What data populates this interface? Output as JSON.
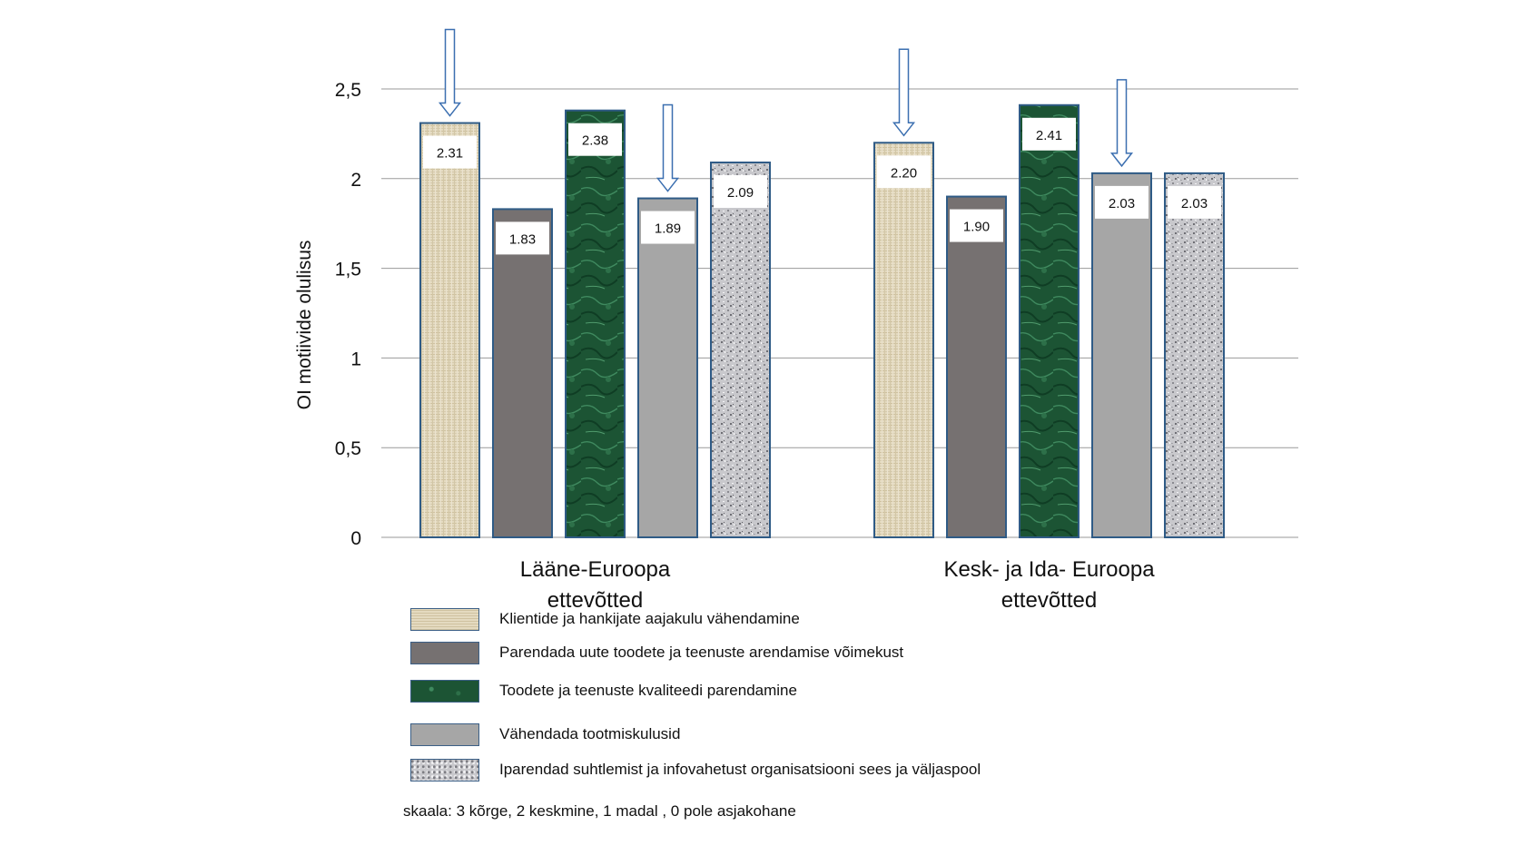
{
  "chart_data": {
    "type": "bar",
    "ylabel": "OI motiivide olulisus",
    "ylim": [
      0,
      2.5
    ],
    "yticks": [
      {
        "value": 0,
        "label": "0"
      },
      {
        "value": 0.5,
        "label": "0,5"
      },
      {
        "value": 1,
        "label": "1"
      },
      {
        "value": 1.5,
        "label": "1,5"
      },
      {
        "value": 2,
        "label": "2"
      },
      {
        "value": 2.5,
        "label": "2,5"
      }
    ],
    "grid": true,
    "groups": [
      {
        "label_lines": [
          "Lääne-Euroopa",
          "ettevõtted"
        ],
        "highlighted_series": [
          0,
          3
        ]
      },
      {
        "label_lines": [
          "Kesk- ja Ida- Euroopa",
          "ettevõtted"
        ],
        "highlighted_series": [
          0,
          3
        ]
      }
    ],
    "series": [
      {
        "name": "Klientide ja hankijate aajakulu vähendamine",
        "pattern": "linen",
        "color": "#ddd2b5",
        "values": [
          2.31,
          2.2
        ],
        "labels": [
          "2.31",
          "2.20"
        ]
      },
      {
        "name": "Parendada uute toodete ja teenuste arendamise võimekust",
        "pattern": "solid",
        "color": "#767171",
        "values": [
          1.83,
          1.9
        ],
        "labels": [
          "1.83",
          "1.90"
        ]
      },
      {
        "name": "Toodete ja teenuste kvaliteedi parendamine",
        "pattern": "marble",
        "color": "#1f5a3a",
        "values": [
          2.38,
          2.41
        ],
        "labels": [
          "2.38",
          "2.41"
        ]
      },
      {
        "name": "Vähendada tootmiskulusid",
        "pattern": "solid",
        "color": "#a6a6a6",
        "values": [
          1.89,
          2.03
        ],
        "labels": [
          "1.89",
          "2.03"
        ]
      },
      {
        "name": "Iparendad suhtlemist ja infovahetust organisatsiooni sees ja väljaspool",
        "pattern": "granite",
        "color": "#c9c9cc",
        "values": [
          2.09,
          2.03
        ],
        "labels": [
          "2.09",
          "2.03"
        ]
      }
    ],
    "legend_position": "bottom"
  },
  "note": "skaala: 3 kõrge, 2 keskmine, 1 madal , 0 pole asjakohane"
}
